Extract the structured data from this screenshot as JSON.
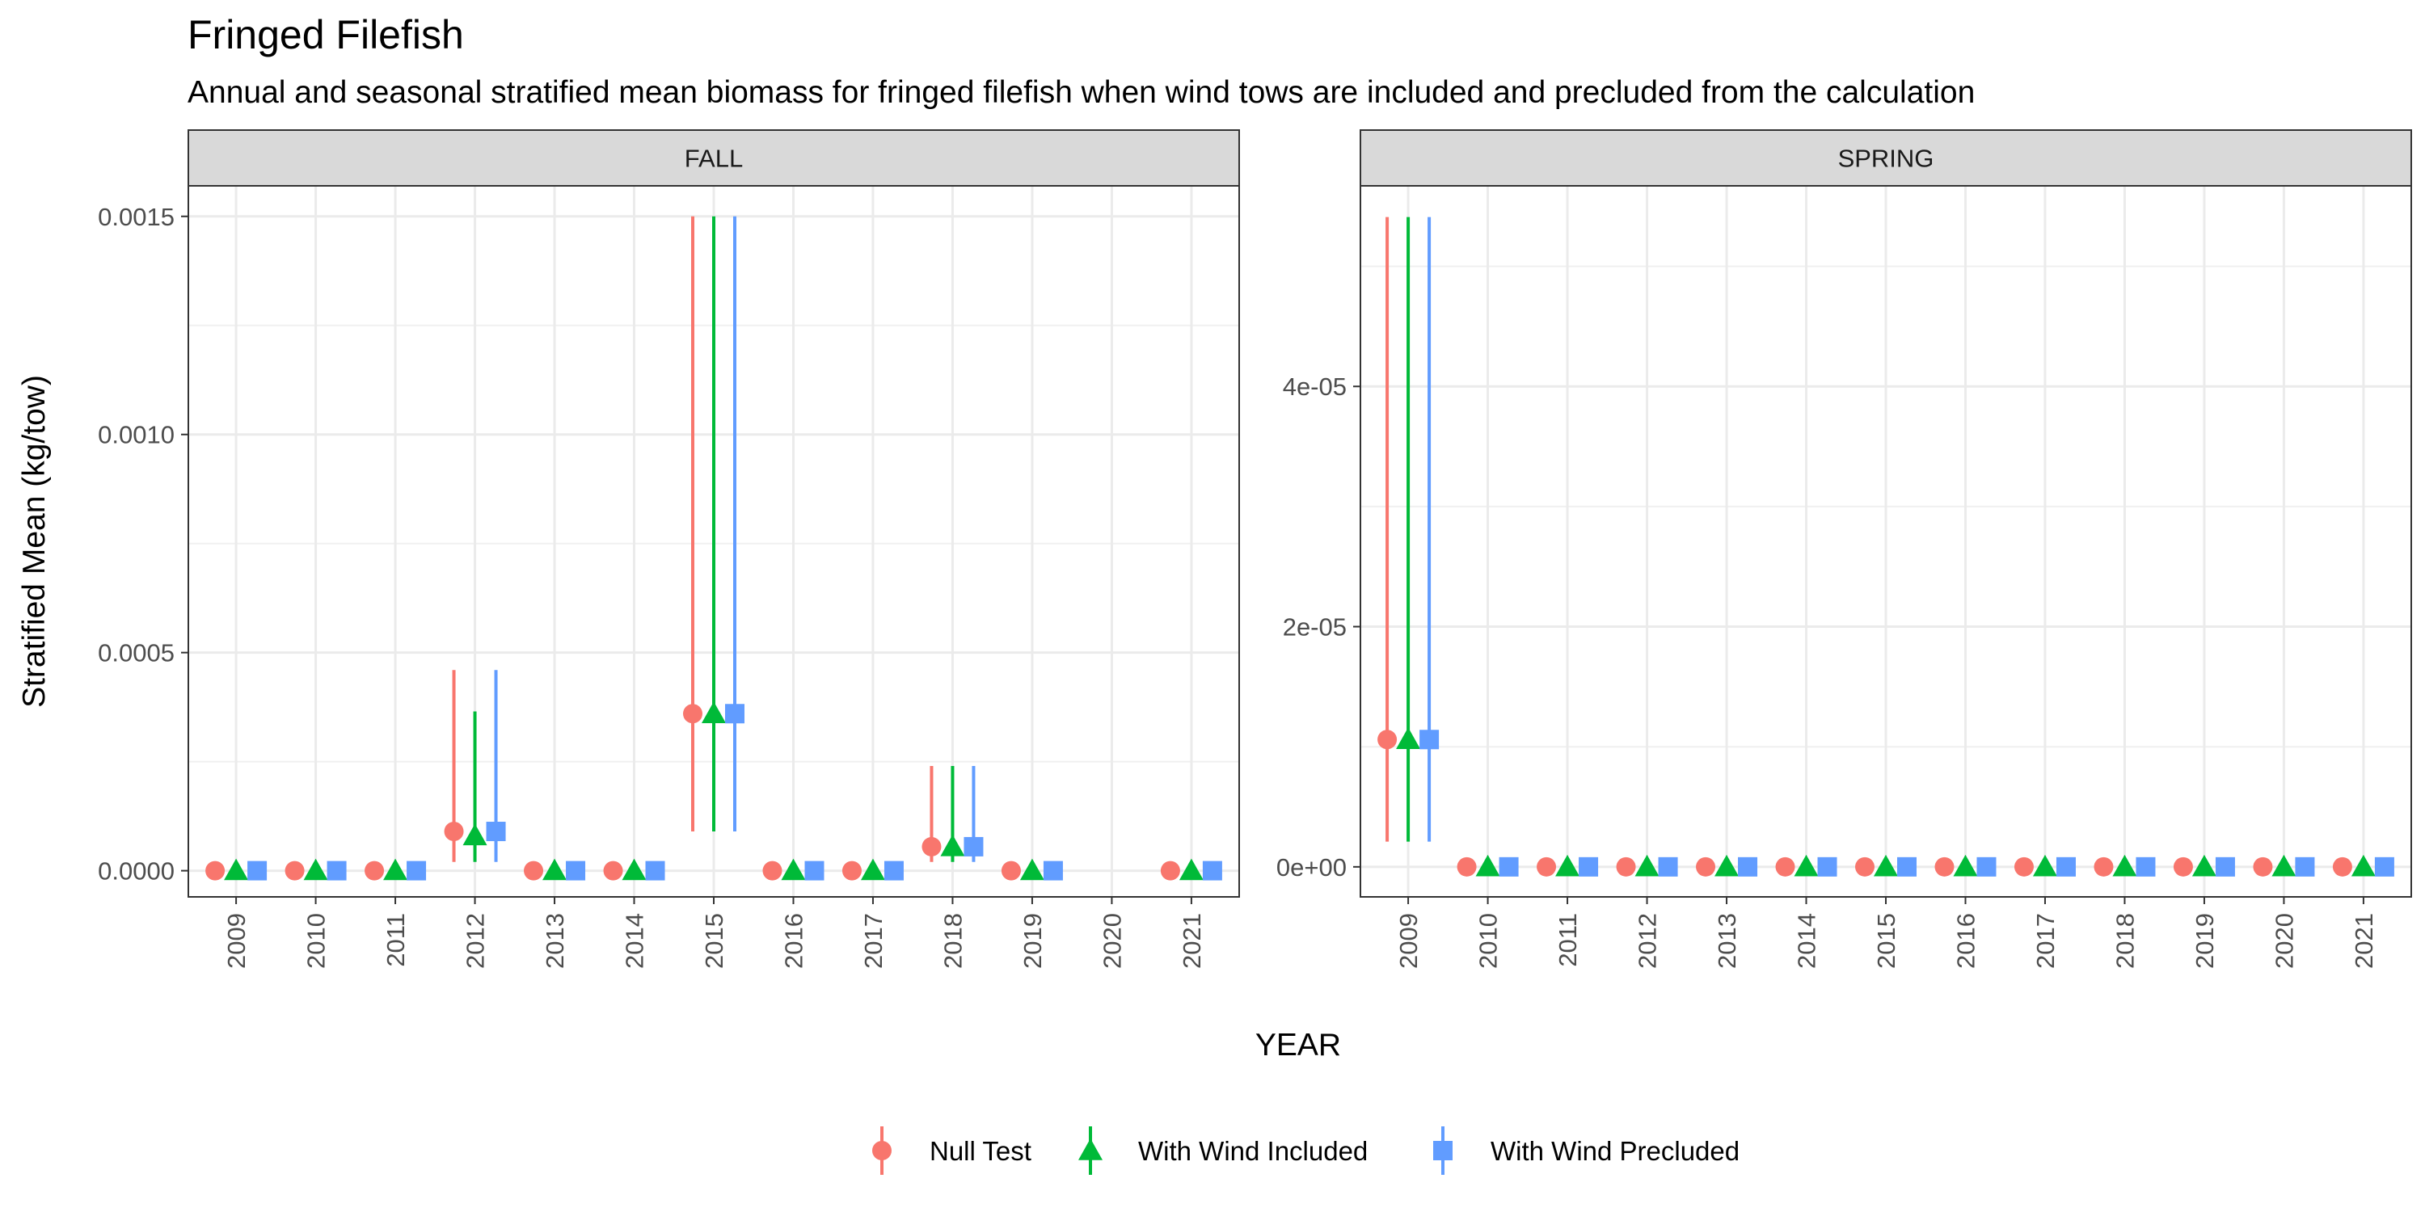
{
  "chart_data": {
    "type": "scatter",
    "title": "Fringed Filefish",
    "subtitle": "Annual and seasonal stratified mean biomass for fringed filefish when wind tows are included and precluded from the calculation",
    "xlabel": "YEAR",
    "ylabel": "Stratified Mean (kg/tow)",
    "grid": true,
    "legend_position": "bottom",
    "series_meta": [
      {
        "name": "Null Test",
        "color": "#F8766D",
        "shape": "circle"
      },
      {
        "name": "With Wind Included",
        "color": "#00BA38",
        "shape": "triangle"
      },
      {
        "name": "With Wind Precluded",
        "color": "#619CFF",
        "shape": "square"
      }
    ],
    "panels": [
      {
        "label": "FALL",
        "years": [
          "2009",
          "2010",
          "2011",
          "2012",
          "2013",
          "2014",
          "2015",
          "2016",
          "2017",
          "2018",
          "2019",
          "2020",
          "2021"
        ],
        "ylim": [
          -6e-05,
          0.00157
        ],
        "yticks": [
          0,
          0.0005,
          0.001,
          0.0015
        ],
        "ytick_labels": [
          "0.0000",
          "0.0005",
          "0.0010",
          "0.0015"
        ],
        "series": [
          {
            "name": "Null Test",
            "values": [
              0,
              0,
              0,
              9e-05,
              0,
              0,
              0.00036,
              0,
              0,
              5.5e-05,
              0,
              null,
              0
            ],
            "lower": [
              null,
              null,
              null,
              2e-05,
              null,
              null,
              9e-05,
              null,
              null,
              2e-05,
              null,
              null,
              null
            ],
            "upper": [
              null,
              null,
              null,
              0.00046,
              null,
              null,
              0.0015,
              null,
              null,
              0.00024,
              null,
              null,
              null
            ]
          },
          {
            "name": "With Wind Included",
            "values": [
              0,
              0,
              0,
              8e-05,
              0,
              0,
              0.00036,
              0,
              0,
              5.5e-05,
              0,
              null,
              0
            ],
            "lower": [
              null,
              null,
              null,
              2e-05,
              null,
              null,
              9e-05,
              null,
              null,
              2e-05,
              null,
              null,
              null
            ],
            "upper": [
              null,
              null,
              null,
              0.000365,
              null,
              null,
              0.0015,
              null,
              null,
              0.00024,
              null,
              null,
              null
            ]
          },
          {
            "name": "With Wind Precluded",
            "values": [
              0,
              0,
              0,
              9e-05,
              0,
              0,
              0.00036,
              0,
              0,
              5.5e-05,
              0,
              null,
              0
            ],
            "lower": [
              null,
              null,
              null,
              2e-05,
              null,
              null,
              9e-05,
              null,
              null,
              2e-05,
              null,
              null,
              null
            ],
            "upper": [
              null,
              null,
              null,
              0.00046,
              null,
              null,
              0.0015,
              null,
              null,
              0.00024,
              null,
              null,
              null
            ]
          }
        ]
      },
      {
        "label": "SPRING",
        "years": [
          "2009",
          "2010",
          "2011",
          "2012",
          "2013",
          "2014",
          "2015",
          "2016",
          "2017",
          "2018",
          "2019",
          "2020",
          "2021"
        ],
        "ylim": [
          -2.5e-06,
          5.67e-05
        ],
        "yticks": [
          0,
          2e-05,
          4e-05
        ],
        "ytick_labels": [
          "0e+00",
          "2e-05",
          "4e-05"
        ],
        "series": [
          {
            "name": "Null Test",
            "values": [
              1.06e-05,
              0,
              0,
              0,
              0,
              0,
              0,
              0,
              0,
              0,
              0,
              0,
              0
            ],
            "lower": [
              2.1e-06,
              null,
              null,
              null,
              null,
              null,
              null,
              null,
              null,
              null,
              null,
              null,
              null
            ],
            "upper": [
              5.41e-05,
              null,
              null,
              null,
              null,
              null,
              null,
              null,
              null,
              null,
              null,
              null,
              null
            ]
          },
          {
            "name": "With Wind Included",
            "values": [
              1.06e-05,
              0,
              0,
              0,
              0,
              0,
              0,
              0,
              0,
              0,
              0,
              0,
              0
            ],
            "lower": [
              2.1e-06,
              null,
              null,
              null,
              null,
              null,
              null,
              null,
              null,
              null,
              null,
              null,
              null
            ],
            "upper": [
              5.41e-05,
              null,
              null,
              null,
              null,
              null,
              null,
              null,
              null,
              null,
              null,
              null,
              null
            ]
          },
          {
            "name": "With Wind Precluded",
            "values": [
              1.06e-05,
              0,
              0,
              0,
              0,
              0,
              0,
              0,
              0,
              0,
              0,
              0,
              0
            ],
            "lower": [
              2.1e-06,
              null,
              null,
              null,
              null,
              null,
              null,
              null,
              null,
              null,
              null,
              null,
              null
            ],
            "upper": [
              5.41e-05,
              null,
              null,
              null,
              null,
              null,
              null,
              null,
              null,
              null,
              null,
              null,
              null
            ]
          }
        ]
      }
    ]
  }
}
